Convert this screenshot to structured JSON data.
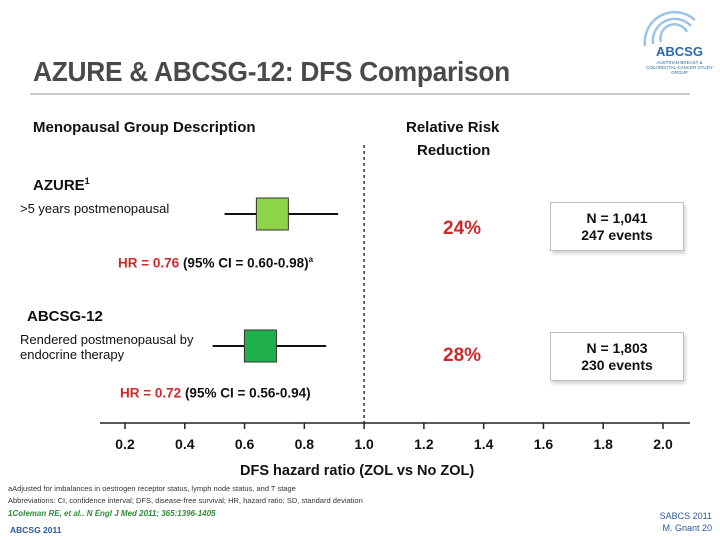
{
  "title": "AZURE & ABCSG-12: DFS Comparison",
  "logo": {
    "text": "ABCSG",
    "subtitle": "AUSTRIAN BREAST & COLORECTAL CANCER STUDY GROUP"
  },
  "headers": {
    "left": "Menopausal Group Description",
    "right_line1": "Relative Risk",
    "right_line2": "Reduction"
  },
  "studies": [
    {
      "name": "AZURE",
      "sup": "1",
      "description": ">5 years postmenopausal",
      "hr_text": "HR = 0.76",
      "ci_text": "(95% CI = 0.60-0.98)",
      "ci_sup": "a",
      "rrr": "24%",
      "n": "N = 1,041",
      "events": "247 events"
    },
    {
      "name": "ABCSG-12",
      "sup": "",
      "description": "Rendered postmenopausal by endocrine therapy",
      "hr_text": "HR = 0.72",
      "ci_text": "(95% CI = 0.56-0.94)",
      "ci_sup": "",
      "rrr": "28%",
      "n": "N = 1,803",
      "events": "230 events"
    }
  ],
  "chart_data": {
    "type": "forest",
    "xlabel": "DFS hazard ratio (ZOL vs No ZOL)",
    "xlim": [
      0.2,
      2.0
    ],
    "xticks": [
      "0.2",
      "0.4",
      "0.6",
      "0.8",
      "1.0",
      "1.2",
      "1.4",
      "1.6",
      "1.8",
      "2.0"
    ],
    "reference_line": 1.0,
    "series": [
      {
        "name": "AZURE",
        "hr": 0.76,
        "ci_low": 0.6,
        "ci_high": 0.98,
        "color": "#8fd34a"
      },
      {
        "name": "ABCSG-12",
        "hr": 0.72,
        "ci_low": 0.56,
        "ci_high": 0.94,
        "color": "#1fb04a"
      }
    ]
  },
  "footnotes": {
    "line1": "aAdjusted for imbalances in oestrogen receptor status, lymph node status, and T stage",
    "line2": "Abbreviations: CI, confidence interval; DFS, disease-free survival; HR, hazard ratio; SD, standard deviation",
    "reference": "1Coleman RE, et al.. N Engl J Med 2011; 365:1396-1405"
  },
  "footer": {
    "left": "ABCSG 2011",
    "right_line1": "SABCS 2011",
    "right_line2": "M. Gnant   20"
  }
}
